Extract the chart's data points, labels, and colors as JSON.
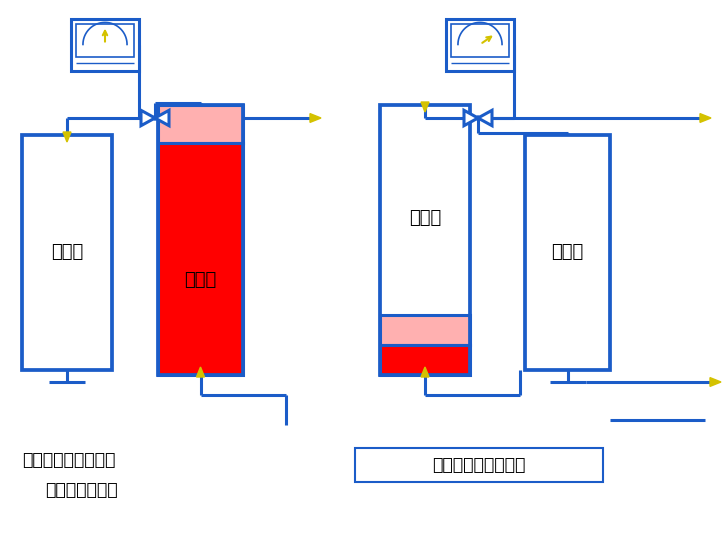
{
  "bg_color": "#ffffff",
  "line_color": "#1b5cc8",
  "line_width": 2.2,
  "text_color": "#000000",
  "red_fill": "#ff0000",
  "pink_fill": "#ffb0b0",
  "arrow_color": "#d4c200",
  "left_label1": "再生腔",
  "left_label2": "干燥腔",
  "right_label1": "干燥腔",
  "right_label2": "再生腔",
  "caption_left1": "露点探头检测切换点",
  "caption_left2": "再生气消耗停止",
  "caption_right": "再生腔切换成干燥腔"
}
